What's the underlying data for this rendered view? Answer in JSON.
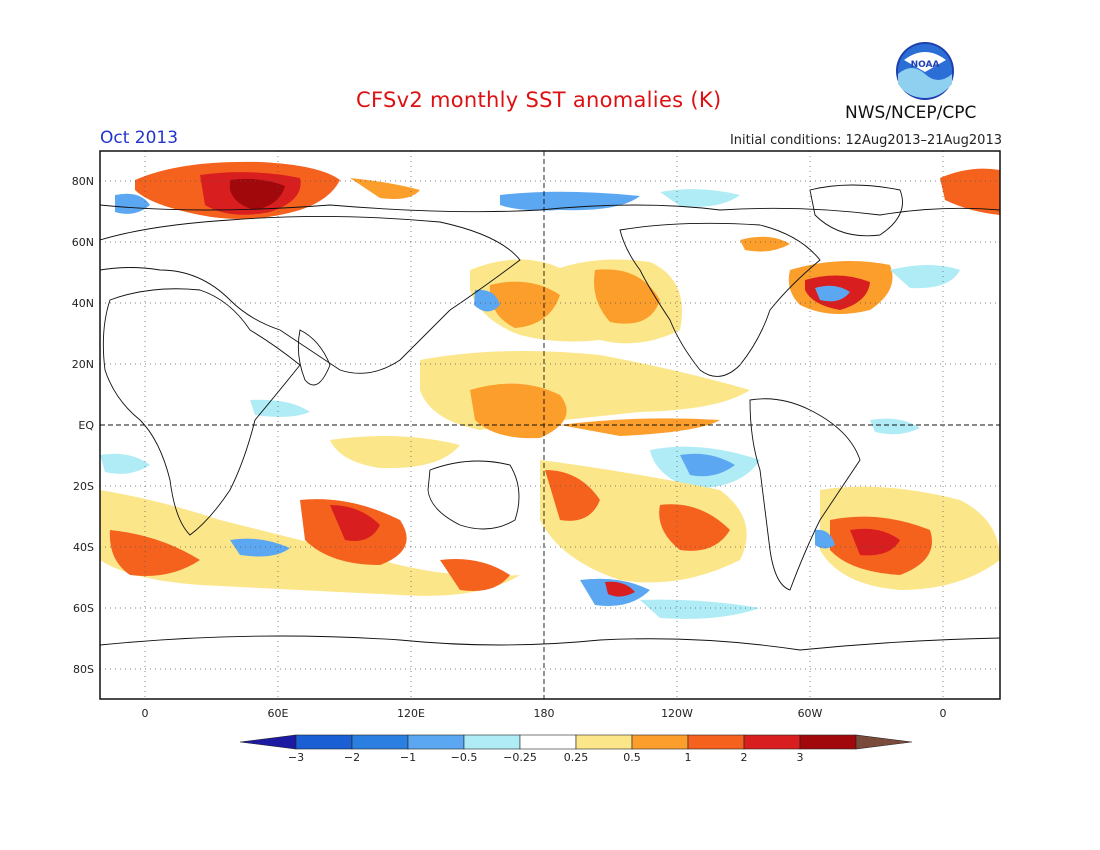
{
  "title": "CFSv2 monthly SST anomalies (K)",
  "month": "Oct 2013",
  "initial_conditions": "Initial conditions: 12Aug2013–21Aug2013",
  "agency": "NWS/NCEP/CPC",
  "logo_text": "NOAA",
  "lat_labels": [
    "80N",
    "60N",
    "40N",
    "20N",
    "EQ",
    "20S",
    "40S",
    "60S",
    "80S"
  ],
  "lon_labels": [
    "0",
    "60E",
    "120E",
    "180",
    "120W",
    "60W",
    "0"
  ],
  "colorbar": {
    "labels": [
      "−3",
      "−2",
      "−1",
      "−0.5",
      "−0.25",
      "0.25",
      "0.5",
      "1",
      "2",
      "3"
    ],
    "colors": [
      "#1c1aa3",
      "#1a5fd4",
      "#2b7fe0",
      "#5ba7f2",
      "#b0ecf6",
      "#ffffff",
      "#fce68a",
      "#fb9e2c",
      "#f5621e",
      "#d81e1e",
      "#a0080c",
      "#7a4a3a"
    ]
  },
  "colors": {
    "title": "#dd1111",
    "month": "#2233cc",
    "warm_strong": "#d81e1e",
    "warm": "#f5621e",
    "warm_light": "#fce68a",
    "cool_light": "#b0ecf6",
    "cool": "#5ba7f2",
    "cool_strong": "#1a5fd4"
  }
}
